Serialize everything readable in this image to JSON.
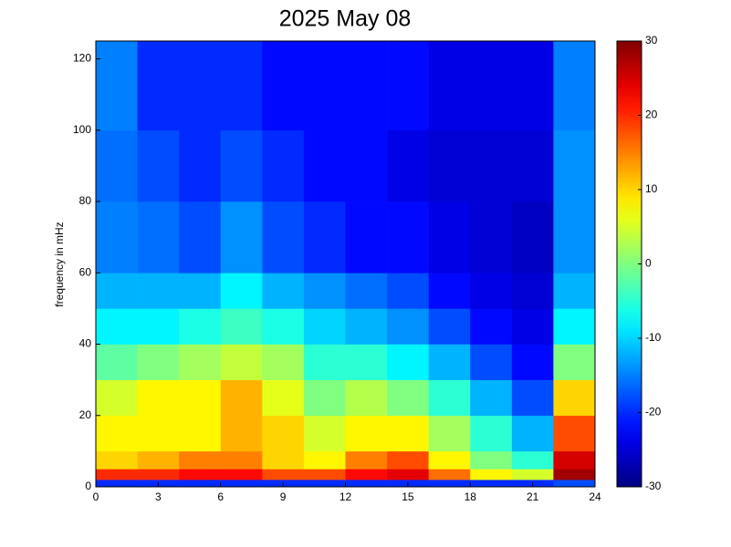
{
  "chart_data": {
    "type": "heatmap",
    "title": "2025 May 08",
    "ylabel": "frequency in mHz",
    "x_bins": [
      0,
      2,
      4,
      6,
      8,
      10,
      12,
      14,
      16,
      18,
      20,
      22,
      24
    ],
    "y_bins": [
      0,
      2,
      5,
      10,
      20,
      30,
      40,
      50,
      60,
      80,
      100,
      125
    ],
    "values": [
      [
        -20,
        -20,
        -20,
        -20,
        -20,
        -20,
        -20,
        -20,
        -20,
        -20,
        -20,
        -18
      ],
      [
        20,
        20,
        22,
        22,
        18,
        18,
        22,
        24,
        16,
        8,
        5,
        28
      ],
      [
        10,
        12,
        15,
        15,
        10,
        8,
        15,
        18,
        8,
        0,
        -5,
        25
      ],
      [
        8,
        8,
        8,
        12,
        10,
        5,
        8,
        8,
        2,
        -5,
        -12,
        18
      ],
      [
        5,
        8,
        8,
        12,
        6,
        0,
        3,
        0,
        -5,
        -12,
        -18,
        10
      ],
      [
        -2,
        0,
        2,
        4,
        2,
        -5,
        -5,
        -8,
        -12,
        -18,
        -22,
        0
      ],
      [
        -8,
        -8,
        -6,
        -4,
        -6,
        -10,
        -12,
        -14,
        -18,
        -22,
        -24,
        -8
      ],
      [
        -12,
        -12,
        -12,
        -8,
        -12,
        -14,
        -16,
        -18,
        -22,
        -24,
        -25,
        -12
      ],
      [
        -15,
        -16,
        -18,
        -14,
        -18,
        -20,
        -22,
        -22,
        -24,
        -25,
        -26,
        -14
      ],
      [
        -16,
        -18,
        -20,
        -18,
        -20,
        -22,
        -22,
        -24,
        -25,
        -25,
        -25,
        -14
      ],
      [
        -15,
        -20,
        -20,
        -20,
        -22,
        -22,
        -22,
        -22,
        -24,
        -24,
        -24,
        -15
      ]
    ],
    "colormap": "jet",
    "xlim": [
      0,
      24
    ],
    "xticks": [
      0,
      3,
      6,
      9,
      12,
      15,
      18,
      21,
      24
    ],
    "ylim": [
      0,
      125
    ],
    "yticks": [
      0,
      20,
      40,
      60,
      80,
      100,
      120
    ],
    "clim": [
      -30,
      30
    ],
    "cticks": [
      -30,
      -20,
      -10,
      0,
      10,
      20,
      30
    ]
  }
}
